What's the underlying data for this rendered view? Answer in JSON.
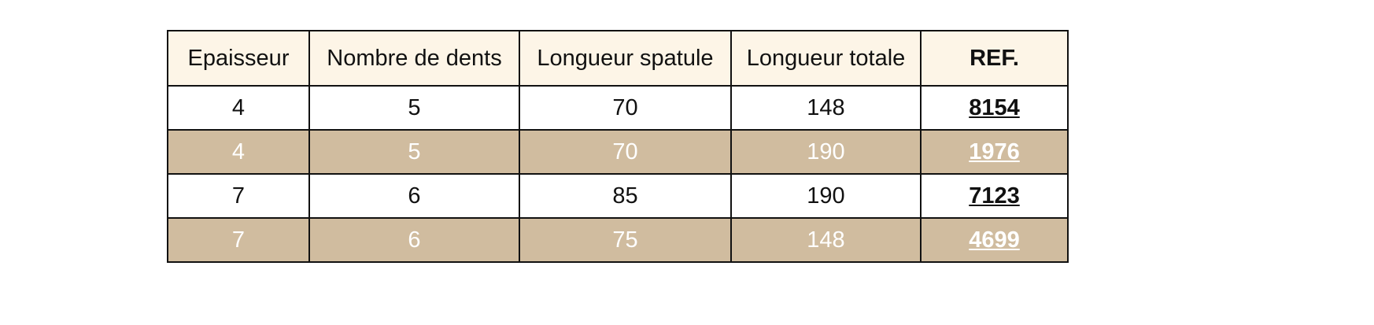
{
  "colors": {
    "header_bg": "#fdf5e7",
    "alt_row_bg": "#d0bc9f",
    "border": "#111111"
  },
  "headers": [
    "Epaisseur",
    "Nombre de dents",
    "Longueur spatule",
    "Longueur totale",
    "REF."
  ],
  "rows": [
    {
      "cells": [
        "4",
        "5",
        "70",
        "148"
      ],
      "ref": "8154"
    },
    {
      "cells": [
        "4",
        "5",
        "70",
        "190"
      ],
      "ref": "1976"
    },
    {
      "cells": [
        "7",
        "6",
        "85",
        "190"
      ],
      "ref": "7123"
    },
    {
      "cells": [
        "7",
        "6",
        "75",
        "148"
      ],
      "ref": "4699"
    }
  ]
}
